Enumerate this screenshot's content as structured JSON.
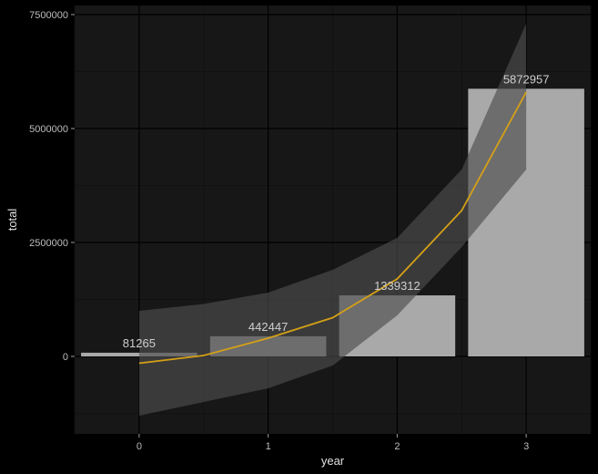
{
  "chart_data": {
    "type": "bar",
    "xlabel": "year",
    "ylabel": "total",
    "x_ticks": [
      0,
      1,
      2,
      3
    ],
    "y_ticks": [
      0,
      2500000,
      5000000,
      7500000
    ],
    "y_tick_labels": [
      "0",
      "2500000",
      "5000000",
      "7500000"
    ],
    "xlim": [
      -0.5,
      3.5
    ],
    "ylim": [
      -1700000,
      7700000
    ],
    "grid": true,
    "colors": {
      "background": "#000000",
      "panel": "#171717",
      "grid_major": "#000000",
      "grid_minor": "#111111",
      "bar": "#a9a9a9",
      "ribbon": "#4d4d4d",
      "curve": "#d4a017"
    },
    "bars": [
      {
        "year": 0,
        "value": 81265,
        "label": "81265"
      },
      {
        "year": 1,
        "value": 442447,
        "label": "442447"
      },
      {
        "year": 2,
        "value": 1339312,
        "label": "1339312"
      },
      {
        "year": 3,
        "value": 5872957,
        "label": "5872957"
      }
    ],
    "fit": {
      "x": [
        0,
        0.5,
        1,
        1.5,
        2,
        2.5,
        3
      ],
      "y": [
        -150000,
        20000,
        400000,
        850000,
        1700000,
        3200000,
        5800000
      ],
      "lower": [
        -1300000,
        -1000000,
        -700000,
        -200000,
        900000,
        2400000,
        4100000
      ],
      "upper": [
        1000000,
        1150000,
        1400000,
        1900000,
        2600000,
        4100000,
        7300000
      ]
    }
  }
}
